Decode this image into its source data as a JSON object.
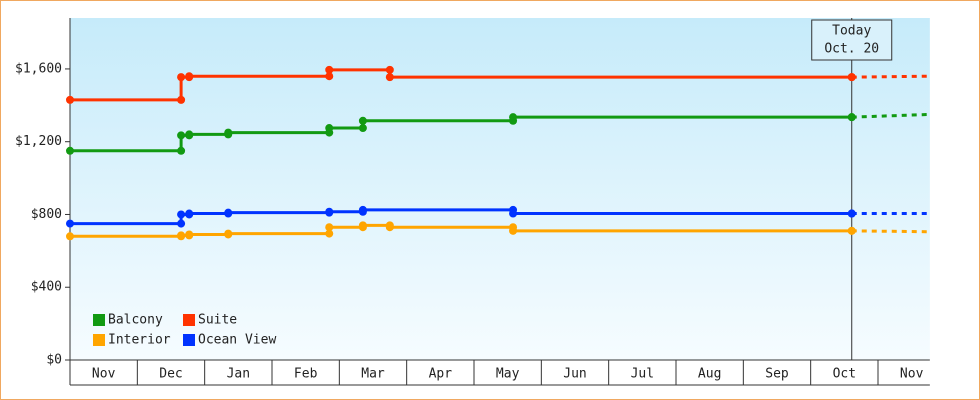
{
  "chart_data": {
    "type": "step",
    "xlim": [
      0,
      12.77
    ],
    "ylim": [
      0,
      1880
    ],
    "yticks": [
      {
        "value": 0,
        "label": "$0"
      },
      {
        "value": 400,
        "label": "$400"
      },
      {
        "value": 800,
        "label": "$800"
      },
      {
        "value": 1200,
        "label": "$1,200"
      },
      {
        "value": 1600,
        "label": "$1,600"
      }
    ],
    "xticks": [
      {
        "value": 0.5,
        "label": "Nov"
      },
      {
        "value": 1.5,
        "label": "Dec"
      },
      {
        "value": 2.5,
        "label": "Jan"
      },
      {
        "value": 3.5,
        "label": "Feb"
      },
      {
        "value": 4.5,
        "label": "Mar"
      },
      {
        "value": 5.5,
        "label": "Apr"
      },
      {
        "value": 6.5,
        "label": "May"
      },
      {
        "value": 7.5,
        "label": "Jun"
      },
      {
        "value": 8.5,
        "label": "Jul"
      },
      {
        "value": 9.5,
        "label": "Aug"
      },
      {
        "value": 10.5,
        "label": "Sep"
      },
      {
        "value": 11.5,
        "label": "Oct"
      },
      {
        "value": 12.5,
        "label": "Nov"
      }
    ],
    "today": {
      "x": 11.61,
      "label": [
        "Today",
        "Oct. 20"
      ]
    },
    "series": [
      {
        "name": "Balcony",
        "color": "#129a12",
        "x": [
          0,
          1.65,
          1.77,
          2.35,
          3.85,
          4.35,
          6.58,
          11.61
        ],
        "values": [
          1150,
          1235,
          1240,
          1250,
          1275,
          1315,
          1335,
          1335
        ],
        "forecast": {
          "x": 12.77,
          "value": 1350
        }
      },
      {
        "name": "Suite",
        "color": "#ff3300",
        "x": [
          0,
          1.65,
          1.77,
          3.85,
          4.75,
          11.61
        ],
        "values": [
          1430,
          1555,
          1560,
          1595,
          1555,
          1555
        ],
        "forecast": {
          "x": 12.77,
          "value": 1560
        }
      },
      {
        "name": "Interior",
        "color": "#ffa500",
        "x": [
          0,
          1.65,
          1.77,
          2.35,
          3.85,
          4.35,
          4.75,
          6.58,
          11.61
        ],
        "values": [
          680,
          685,
          690,
          695,
          730,
          740,
          730,
          710,
          710
        ],
        "forecast": {
          "x": 12.77,
          "value": 705
        }
      },
      {
        "name": "Ocean View",
        "color": "#0033ff",
        "x": [
          0,
          1.65,
          1.77,
          2.35,
          3.85,
          4.35,
          6.58,
          11.61
        ],
        "values": [
          750,
          800,
          805,
          810,
          815,
          825,
          805,
          805
        ],
        "forecast": {
          "x": 12.77,
          "value": 805
        }
      }
    ]
  }
}
